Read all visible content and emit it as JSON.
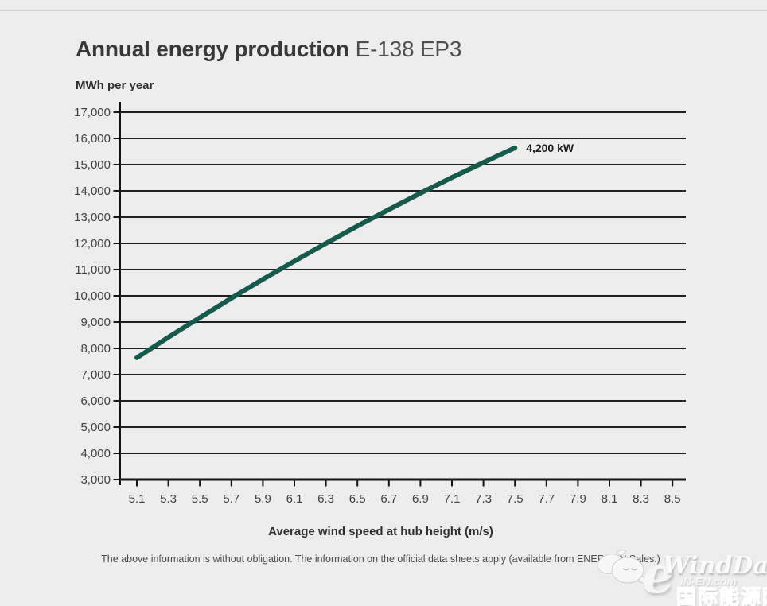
{
  "header": {
    "title_bold": "Annual energy production",
    "title_light": "E-138 EP3"
  },
  "chart_labels": {
    "unit_label": "MWh per year",
    "x_axis_title": "Average wind speed at hub height (m/s)"
  },
  "footer": {
    "disclaimer": "The above information is without obligation. The information on the official data sheets apply (available from ENERCON Sales.)"
  },
  "watermark": {
    "logo_letter": "e",
    "name": "WindDaily",
    "site": "IN-EN.com",
    "chinese": "国际能源网"
  },
  "chart_data": {
    "type": "line",
    "title": "Annual energy production E-138 EP3",
    "xlabel": "Average wind speed at hub height (m/s)",
    "ylabel": "MWh per year",
    "xlim": [
      5.1,
      8.5
    ],
    "ylim": [
      3000,
      17000
    ],
    "grid": "horizontal",
    "legend_position": "inline-annotation",
    "x_ticks": [
      5.1,
      5.3,
      5.5,
      5.7,
      5.9,
      6.1,
      6.3,
      6.5,
      6.7,
      6.9,
      7.1,
      7.3,
      7.5,
      7.7,
      7.9,
      8.1,
      8.3,
      8.5
    ],
    "x_tick_labels": [
      "5.1",
      "5.3",
      "5.5",
      "5.7",
      "5.9",
      "6.1",
      "6.3",
      "6.5",
      "6.7",
      "6.9",
      "7.1",
      "7.3",
      "7.5",
      "7.7",
      "7.9",
      "8.1",
      "8.3",
      "8.5"
    ],
    "y_ticks": [
      3000,
      4000,
      5000,
      6000,
      7000,
      8000,
      9000,
      10000,
      11000,
      12000,
      13000,
      14000,
      15000,
      16000,
      17000
    ],
    "y_tick_labels": [
      "3,000",
      "4,000",
      "5,000",
      "6,000",
      "7,000",
      "8,000",
      "9,000",
      "10,000",
      "11,000",
      "12,000",
      "13,000",
      "14,000",
      "15,000",
      "16,000",
      "17,000"
    ],
    "series": [
      {
        "name": "4,200 kW",
        "color": "#155a4c",
        "x": [
          5.1,
          5.3,
          5.5,
          5.7,
          5.9,
          6.1,
          6.3,
          6.5,
          6.7,
          6.9,
          7.1,
          7.3,
          7.5
        ],
        "y": [
          7640,
          8420,
          9170,
          9910,
          10630,
          11320,
          12000,
          12660,
          13290,
          13910,
          14510,
          15080,
          15640
        ]
      }
    ],
    "colors": {
      "gridline": "#202020",
      "axis": "#141414",
      "tick_text": "#3f3f3f",
      "annotation_text": "#1c1c1c",
      "background": "#ededed"
    }
  }
}
